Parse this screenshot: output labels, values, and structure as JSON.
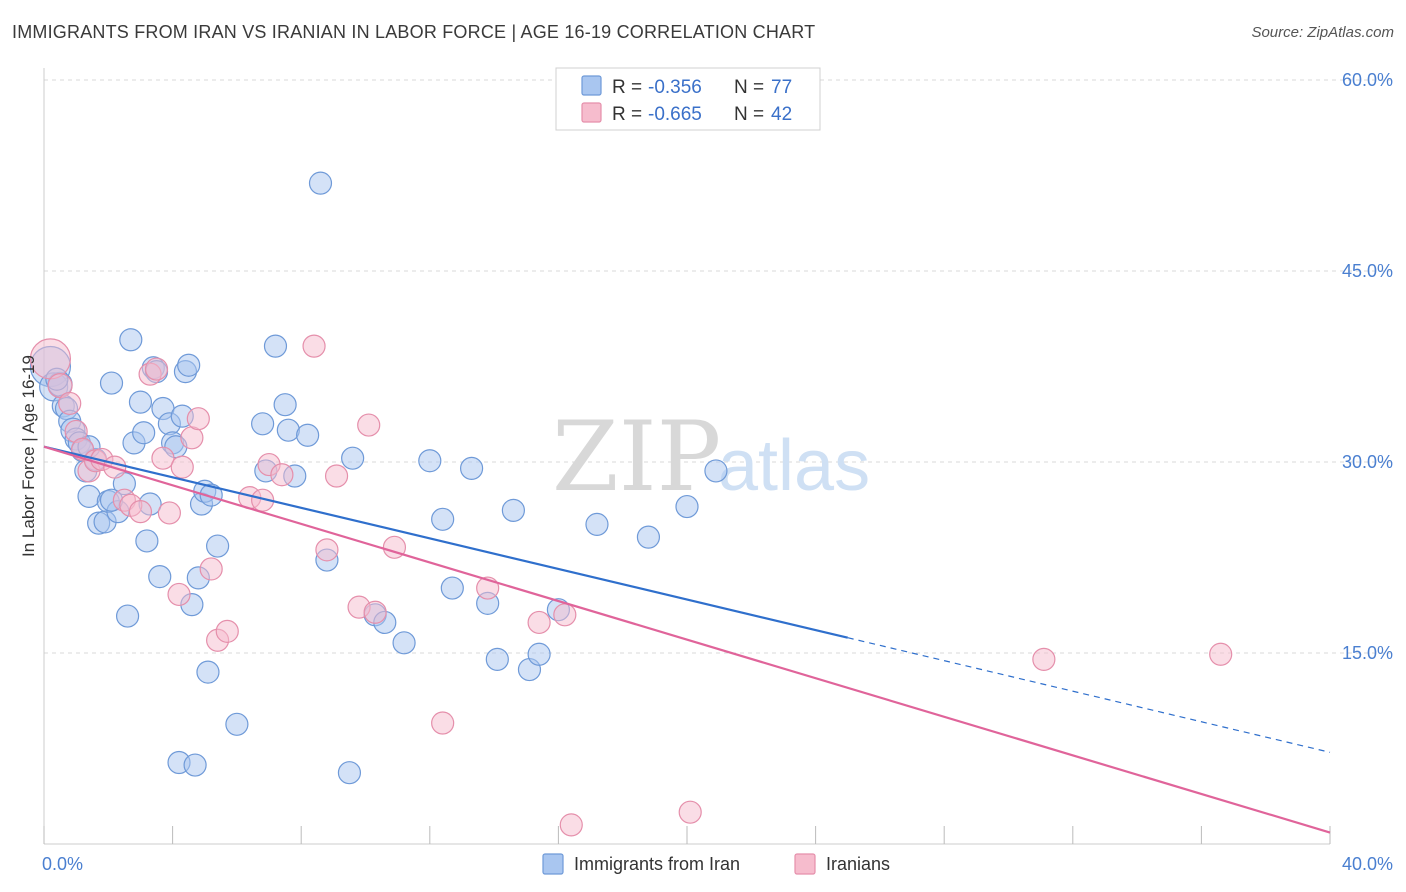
{
  "title": "IMMIGRANTS FROM IRAN VS IRANIAN IN LABOR FORCE | AGE 16-19 CORRELATION CHART",
  "source": "Source: ZipAtlas.com",
  "watermark": {
    "zip": "ZIP",
    "atlas": "atlas"
  },
  "colors": {
    "blue_fill": "#a9c6f0",
    "blue_stroke": "#6f9ad8",
    "blue_line": "#2f6fcc",
    "pink_fill": "#f6bccd",
    "pink_stroke": "#e58fab",
    "pink_line": "#e0649a",
    "grid": "#d9d9d9",
    "tick_label": "#4a7fd0"
  },
  "legend": {
    "r_label": "R =",
    "n_label": "N =",
    "entries": [
      {
        "r": "-0.356",
        "n": "77"
      },
      {
        "r": "-0.665",
        "n": "42"
      }
    ]
  },
  "chart_data": {
    "type": "scatter",
    "title": "IMMIGRANTS FROM IRAN VS IRANIAN IN LABOR FORCE | AGE 16-19 CORRELATION CHART",
    "xlabel": "",
    "ylabel": "In Labor Force | Age 16-19",
    "xlim": [
      0,
      40
    ],
    "ylim": [
      0,
      60
    ],
    "x_tick_labels": [
      "0.0%",
      "40.0%"
    ],
    "y_ticks": [
      15,
      30,
      45,
      60
    ],
    "y_tick_labels": [
      "15.0%",
      "30.0%",
      "45.0%",
      "60.0%"
    ],
    "grid": true,
    "legend_position": "top-center",
    "series": [
      {
        "name": "Immigrants from Iran",
        "color": "#a9c6f0",
        "points": [
          [
            0.2,
            37.5,
            20
          ],
          [
            0.3,
            35.9,
            14
          ],
          [
            0.5,
            36.1,
            12
          ],
          [
            0.6,
            34.4,
            11
          ],
          [
            0.7,
            34.2,
            11
          ],
          [
            0.8,
            33.2,
            11
          ],
          [
            0.9,
            32.5,
            12
          ],
          [
            1.0,
            31.8,
            11
          ],
          [
            1.1,
            31.5,
            11
          ],
          [
            1.2,
            30.9,
            11
          ],
          [
            1.3,
            29.3,
            11
          ],
          [
            1.4,
            27.3,
            11
          ],
          [
            1.6,
            30.2,
            11
          ],
          [
            1.7,
            25.2,
            11
          ],
          [
            1.9,
            25.3,
            11
          ],
          [
            2.0,
            26.9,
            11
          ],
          [
            2.1,
            36.2,
            11
          ],
          [
            2.3,
            26.1,
            11
          ],
          [
            2.5,
            28.3,
            11
          ],
          [
            2.6,
            17.9,
            11
          ],
          [
            2.7,
            39.6,
            11
          ],
          [
            2.8,
            31.5,
            11
          ],
          [
            3.0,
            34.7,
            11
          ],
          [
            3.1,
            32.3,
            11
          ],
          [
            3.2,
            23.8,
            11
          ],
          [
            3.3,
            26.7,
            11
          ],
          [
            3.4,
            37.4,
            11
          ],
          [
            3.5,
            37.1,
            11
          ],
          [
            3.6,
            21.0,
            11
          ],
          [
            3.7,
            34.2,
            11
          ],
          [
            3.9,
            33.0,
            11
          ],
          [
            4.0,
            31.5,
            11
          ],
          [
            4.1,
            31.2,
            11
          ],
          [
            4.2,
            6.4,
            11
          ],
          [
            4.3,
            33.6,
            11
          ],
          [
            4.4,
            37.1,
            11
          ],
          [
            4.5,
            37.6,
            11
          ],
          [
            4.6,
            18.8,
            11
          ],
          [
            4.7,
            6.2,
            11
          ],
          [
            4.8,
            20.9,
            11
          ],
          [
            4.9,
            26.7,
            11
          ],
          [
            5.0,
            27.7,
            11
          ],
          [
            5.1,
            13.5,
            11
          ],
          [
            5.2,
            27.4,
            11
          ],
          [
            5.4,
            23.4,
            11
          ],
          [
            6.0,
            9.4,
            11
          ],
          [
            6.8,
            33.0,
            11
          ],
          [
            6.9,
            29.3,
            11
          ],
          [
            7.2,
            39.1,
            11
          ],
          [
            7.5,
            34.5,
            11
          ],
          [
            7.6,
            32.5,
            11
          ],
          [
            7.8,
            28.9,
            11
          ],
          [
            8.2,
            32.1,
            11
          ],
          [
            8.6,
            51.9,
            11
          ],
          [
            8.8,
            22.3,
            11
          ],
          [
            9.5,
            5.6,
            11
          ],
          [
            9.6,
            30.3,
            11
          ],
          [
            10.3,
            18.0,
            11
          ],
          [
            10.6,
            17.4,
            11
          ],
          [
            11.2,
            15.8,
            11
          ],
          [
            12.0,
            30.1,
            11
          ],
          [
            12.4,
            25.5,
            11
          ],
          [
            12.7,
            20.1,
            11
          ],
          [
            13.3,
            29.5,
            11
          ],
          [
            13.8,
            18.9,
            11
          ],
          [
            14.1,
            14.5,
            11
          ],
          [
            14.6,
            26.2,
            11
          ],
          [
            15.1,
            13.7,
            11
          ],
          [
            15.4,
            14.9,
            11
          ],
          [
            16.0,
            18.4,
            11
          ],
          [
            17.2,
            25.1,
            11
          ],
          [
            18.8,
            24.1,
            11
          ],
          [
            20.0,
            26.5,
            11
          ],
          [
            20.9,
            29.3,
            11
          ],
          [
            2.1,
            27.0,
            11
          ],
          [
            1.4,
            31.2,
            11
          ],
          [
            0.4,
            36.5,
            11
          ]
        ]
      },
      {
        "name": "Iranians",
        "color": "#f6bccd",
        "points": [
          [
            0.2,
            38.1,
            20
          ],
          [
            0.5,
            36.0,
            12
          ],
          [
            0.8,
            34.6,
            11
          ],
          [
            1.0,
            32.4,
            11
          ],
          [
            1.2,
            31.0,
            11
          ],
          [
            1.4,
            29.3,
            11
          ],
          [
            1.6,
            30.1,
            11
          ],
          [
            1.8,
            30.2,
            11
          ],
          [
            2.2,
            29.6,
            11
          ],
          [
            2.5,
            27.0,
            11
          ],
          [
            2.7,
            26.6,
            11
          ],
          [
            3.0,
            26.1,
            11
          ],
          [
            3.3,
            36.9,
            11
          ],
          [
            3.5,
            37.3,
            11
          ],
          [
            3.7,
            30.3,
            11
          ],
          [
            3.9,
            26.0,
            11
          ],
          [
            4.2,
            19.6,
            11
          ],
          [
            4.3,
            29.6,
            11
          ],
          [
            4.6,
            31.9,
            11
          ],
          [
            4.8,
            33.4,
            11
          ],
          [
            5.2,
            21.6,
            11
          ],
          [
            5.4,
            16.0,
            11
          ],
          [
            5.7,
            16.7,
            11
          ],
          [
            6.4,
            27.2,
            11
          ],
          [
            6.8,
            27.0,
            11
          ],
          [
            7.0,
            29.8,
            11
          ],
          [
            7.4,
            29.0,
            11
          ],
          [
            8.4,
            39.1,
            11
          ],
          [
            8.8,
            23.1,
            11
          ],
          [
            9.1,
            28.9,
            11
          ],
          [
            9.8,
            18.6,
            11
          ],
          [
            10.1,
            32.9,
            11
          ],
          [
            10.3,
            18.2,
            11
          ],
          [
            10.9,
            23.3,
            11
          ],
          [
            12.4,
            9.5,
            11
          ],
          [
            13.8,
            20.1,
            11
          ],
          [
            15.4,
            17.4,
            11
          ],
          [
            16.2,
            18.0,
            11
          ],
          [
            16.4,
            1.5,
            11
          ],
          [
            20.1,
            2.5,
            11
          ],
          [
            31.1,
            14.5,
            11
          ],
          [
            36.6,
            14.9,
            11
          ]
        ]
      }
    ],
    "trendlines": [
      {
        "series": "Immigrants from Iran",
        "x": [
          0,
          25.0
        ],
        "y": [
          31.2,
          16.2
        ],
        "dashed_to": [
          40,
          7.2
        ]
      },
      {
        "series": "Iranians",
        "x": [
          0,
          40
        ],
        "y": [
          31.2,
          0.9
        ]
      }
    ]
  },
  "bottom_legend": [
    {
      "label": "Immigrants from Iran"
    },
    {
      "label": "Iranians"
    }
  ]
}
